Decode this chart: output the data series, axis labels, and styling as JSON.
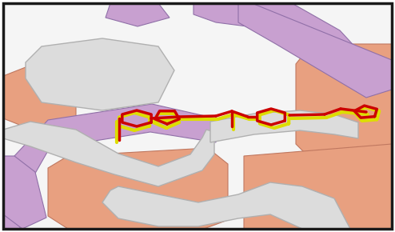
{
  "fig_width": 4.94,
  "fig_height": 2.9,
  "dpi": 100,
  "border_color": "#1a1a1a",
  "border_linewidth": 2.5,
  "background_color": "#ffffff",
  "purple_color": "#c8a0d0",
  "purple_edge": "#9070a8",
  "salmon_color": "#e8a080",
  "salmon_edge": "#c07860",
  "loop_color": "#dcdcdc",
  "loop_edge_color": "#b0b0b0",
  "red_stick_color": "#cc0000",
  "yellow_stick_color": "#dddd00"
}
